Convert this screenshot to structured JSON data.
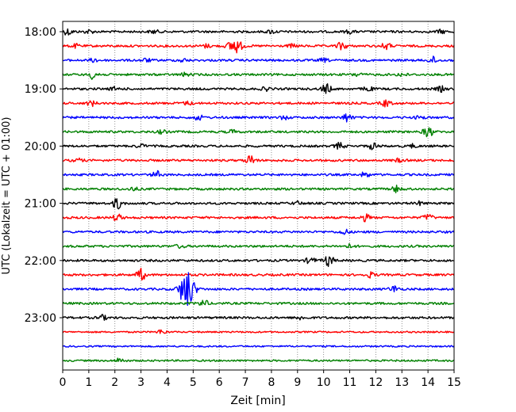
{
  "chart_data": {
    "type": "line",
    "xlabel": "Zeit  [min]",
    "ylabel": "UTC (Lokalzeit = UTC + 01:00)",
    "xlim": [
      0,
      15
    ],
    "x_ticks": [
      0,
      1,
      2,
      3,
      4,
      5,
      6,
      7,
      8,
      9,
      10,
      11,
      12,
      13,
      14,
      15
    ],
    "x_tick_labels": [
      "0",
      "1",
      "2",
      "3",
      "4",
      "5",
      "6",
      "7",
      "8",
      "9",
      "10",
      "11",
      "12",
      "13",
      "14",
      "15"
    ],
    "y_tick_labels": [
      "18:00",
      "19:00",
      "20:00",
      "21:00",
      "22:00",
      "23:00"
    ],
    "grid": "vertical dotted",
    "colors": [
      "#000000",
      "#ff0000",
      "#0000ff",
      "#008000"
    ],
    "traces": [
      {
        "start": "18:00",
        "color": "#000000",
        "base": 2.5,
        "events": [
          [
            0.2,
            4
          ],
          [
            1.0,
            2
          ],
          [
            3.5,
            2
          ],
          [
            8.0,
            2
          ],
          [
            11.0,
            2
          ],
          [
            14.5,
            2
          ]
        ]
      },
      {
        "start": "18:15",
        "color": "#ff0000",
        "base": 2.5,
        "events": [
          [
            0.5,
            2
          ],
          [
            5.5,
            2
          ],
          [
            6.6,
            9
          ],
          [
            8.8,
            2
          ],
          [
            10.7,
            5
          ],
          [
            12.4,
            4
          ]
        ]
      },
      {
        "start": "18:30",
        "color": "#0000ff",
        "base": 2.5,
        "events": [
          [
            1.2,
            2
          ],
          [
            3.2,
            2
          ],
          [
            4.6,
            2
          ],
          [
            10.0,
            2
          ],
          [
            14.2,
            4
          ]
        ]
      },
      {
        "start": "18:45",
        "color": "#008000",
        "base": 2.5,
        "events": [
          [
            1.2,
            6
          ],
          [
            4.7,
            2
          ],
          [
            11.3,
            2
          ],
          [
            13.0,
            2
          ]
        ]
      },
      {
        "start": "19:00",
        "color": "#000000",
        "base": 2.5,
        "events": [
          [
            2.0,
            2
          ],
          [
            7.8,
            2
          ],
          [
            10.1,
            6
          ],
          [
            11.7,
            3
          ],
          [
            14.5,
            3
          ]
        ]
      },
      {
        "start": "19:15",
        "color": "#ff0000",
        "base": 2.5,
        "events": [
          [
            1.1,
            3
          ],
          [
            4.8,
            2
          ],
          [
            12.4,
            4
          ]
        ]
      },
      {
        "start": "19:30",
        "color": "#0000ff",
        "base": 2.5,
        "events": [
          [
            5.2,
            3
          ],
          [
            8.5,
            2
          ],
          [
            10.9,
            5
          ],
          [
            13.7,
            2
          ]
        ]
      },
      {
        "start": "19:45",
        "color": "#008000",
        "base": 2.5,
        "events": [
          [
            3.8,
            2
          ],
          [
            6.5,
            2
          ],
          [
            14.0,
            7
          ]
        ]
      },
      {
        "start": "20:00",
        "color": "#000000",
        "base": 2.5,
        "events": [
          [
            3.0,
            2
          ],
          [
            10.6,
            4
          ],
          [
            11.9,
            4
          ],
          [
            13.4,
            2
          ]
        ]
      },
      {
        "start": "20:15",
        "color": "#ff0000",
        "base": 2.5,
        "events": [
          [
            0.6,
            2
          ],
          [
            7.2,
            6
          ],
          [
            12.9,
            2
          ]
        ]
      },
      {
        "start": "20:30",
        "color": "#0000ff",
        "base": 2.5,
        "events": [
          [
            3.6,
            4
          ],
          [
            11.6,
            3
          ]
        ]
      },
      {
        "start": "20:45",
        "color": "#008000",
        "base": 2.5,
        "events": [
          [
            2.7,
            2
          ],
          [
            12.8,
            4
          ]
        ]
      },
      {
        "start": "21:00",
        "color": "#000000",
        "base": 2.5,
        "events": [
          [
            2.1,
            7
          ],
          [
            9.0,
            2
          ],
          [
            13.7,
            2
          ]
        ]
      },
      {
        "start": "21:15",
        "color": "#ff0000",
        "base": 2.5,
        "events": [
          [
            2.1,
            4
          ],
          [
            11.6,
            4
          ],
          [
            14.0,
            4
          ]
        ]
      },
      {
        "start": "21:30",
        "color": "#0000ff",
        "base": 2.5,
        "events": [
          [
            10.8,
            3
          ]
        ]
      },
      {
        "start": "21:45",
        "color": "#008000",
        "base": 2.5,
        "events": [
          [
            4.5,
            2
          ],
          [
            11.0,
            2
          ]
        ]
      },
      {
        "start": "22:00",
        "color": "#000000",
        "base": 2.5,
        "events": [
          [
            9.5,
            4
          ],
          [
            10.2,
            7
          ]
        ]
      },
      {
        "start": "22:15",
        "color": "#ff0000",
        "base": 2.5,
        "events": [
          [
            3.0,
            7
          ],
          [
            11.8,
            3
          ]
        ]
      },
      {
        "start": "22:30",
        "color": "#0000ff",
        "base": 2.5,
        "events": [
          [
            4.7,
            10
          ],
          [
            4.8,
            16
          ],
          [
            12.7,
            4
          ]
        ]
      },
      {
        "start": "22:45",
        "color": "#008000",
        "base": 2.5,
        "events": [
          [
            5.4,
            4
          ]
        ]
      },
      {
        "start": "23:00",
        "color": "#000000",
        "base": 2.5,
        "events": [
          [
            1.5,
            3
          ],
          [
            9.1,
            2
          ]
        ]
      },
      {
        "start": "23:15",
        "color": "#ff0000",
        "base": 1.8,
        "events": [
          [
            3.8,
            3
          ]
        ]
      },
      {
        "start": "23:30",
        "color": "#0000ff",
        "base": 1.8,
        "events": []
      },
      {
        "start": "23:45",
        "color": "#008000",
        "base": 2.0,
        "events": [
          [
            2.2,
            3
          ]
        ]
      }
    ]
  }
}
